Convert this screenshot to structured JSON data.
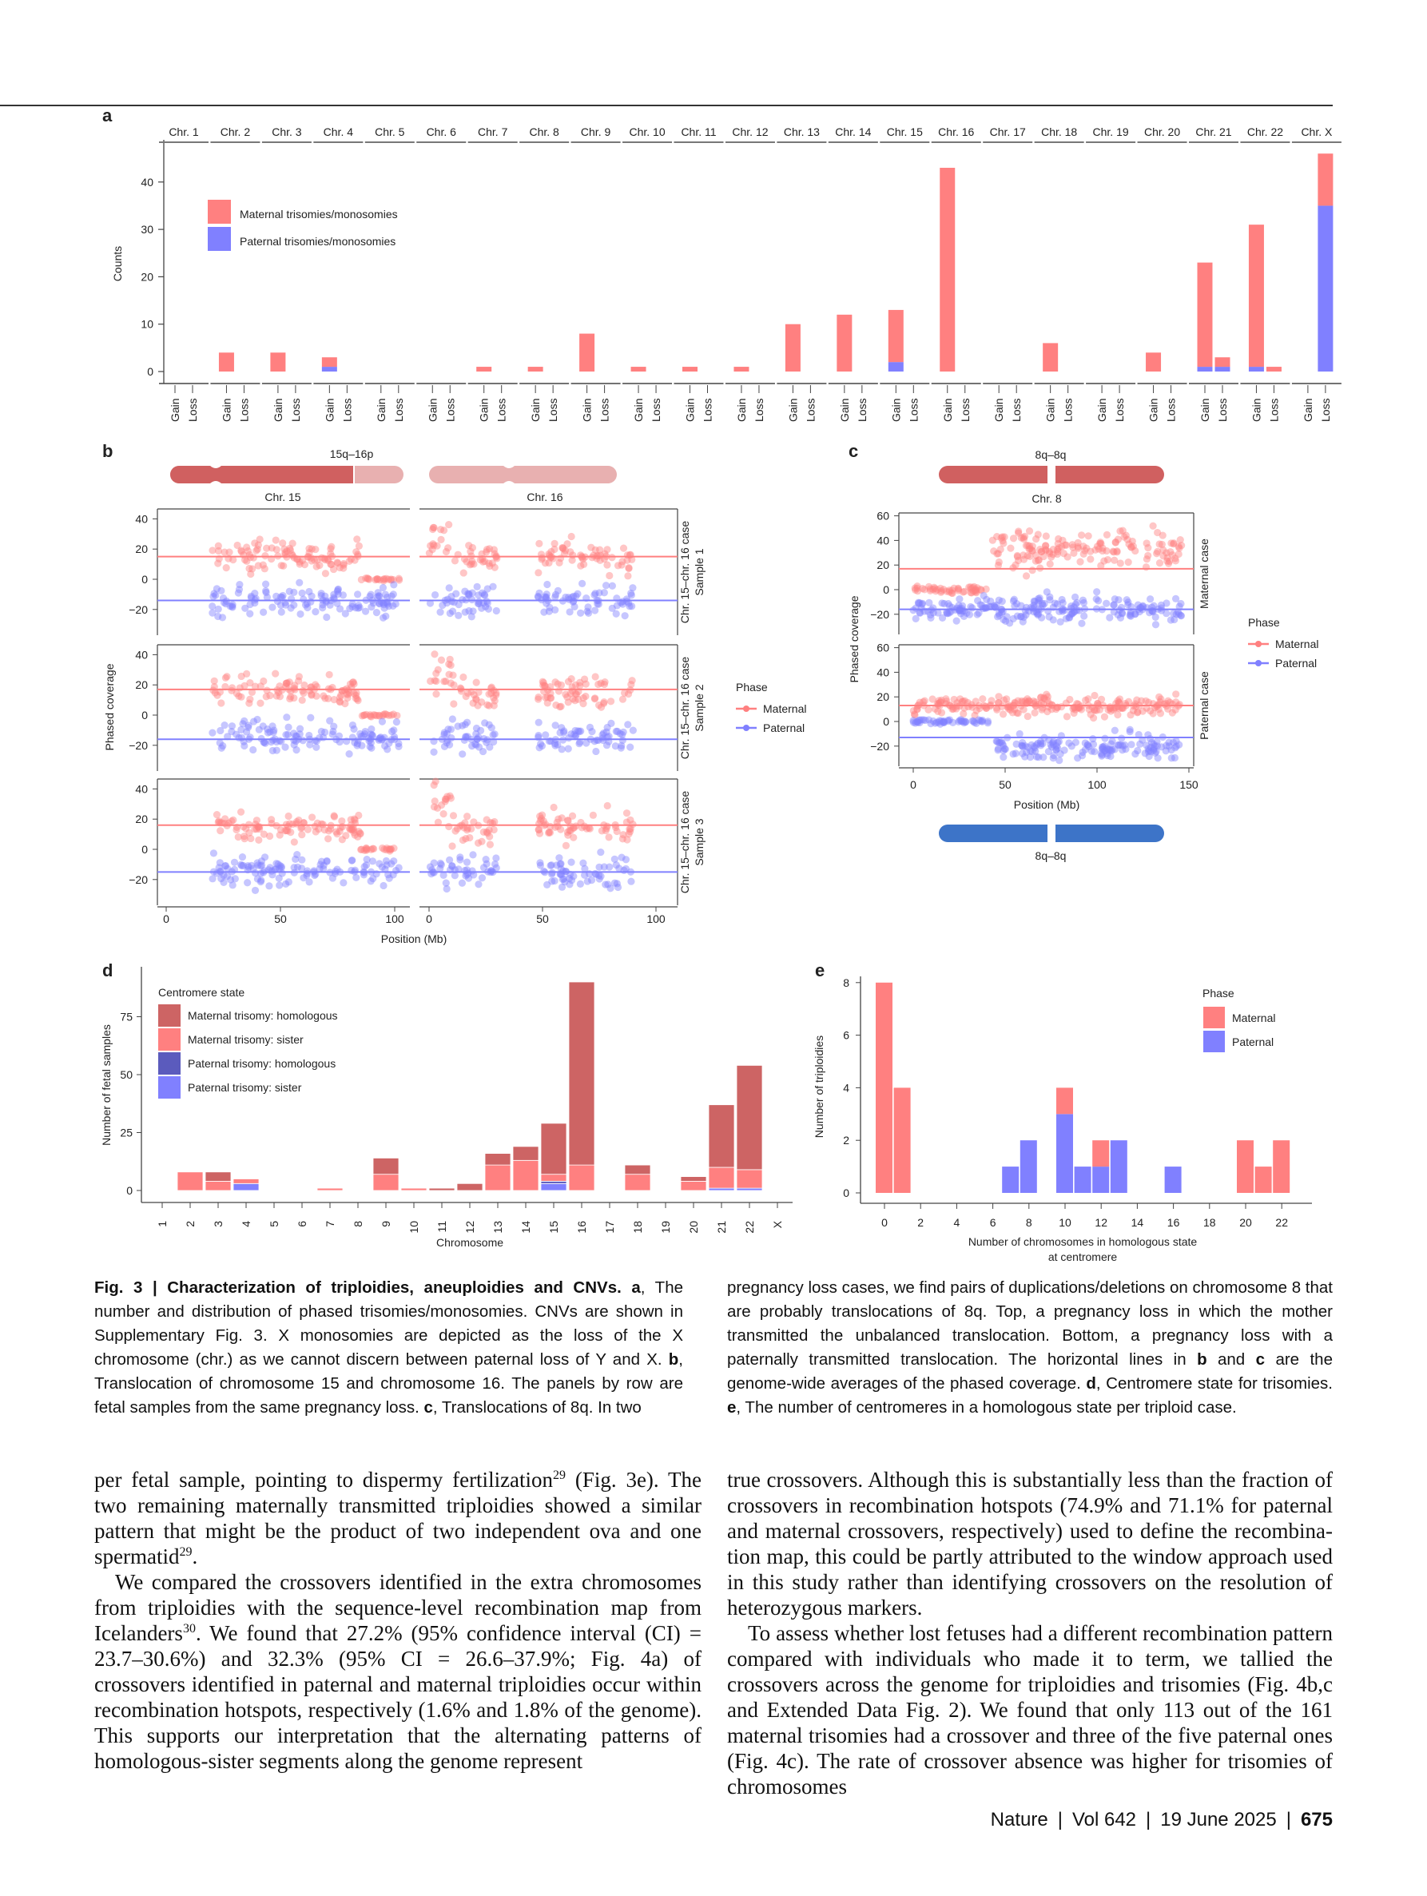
{
  "colors": {
    "maternal": "#ff8080",
    "paternal": "#8080ff",
    "maternal_homologous": "#cd6464",
    "paternal_homologous": "#5b5bbd",
    "ideogram_dark": "#d06060",
    "ideogram_light": "#e8b0b0",
    "ideogram_blue": "#3d74c8"
  },
  "panel_letters": {
    "a": "a",
    "b": "b",
    "c": "c",
    "d": "d",
    "e": "e"
  },
  "chart_data": [
    {
      "id": "a",
      "type": "bar",
      "stacked": true,
      "ylabel": "Counts",
      "yticks": [
        0,
        10,
        20,
        30,
        40
      ],
      "ylim": [
        0,
        46
      ],
      "legend": [
        "Maternal trisomies/monosomies",
        "Paternal trisomies/monosomies"
      ],
      "legend_placement": "top-left",
      "subcategories": [
        "Gain",
        "Loss"
      ],
      "categories": [
        "Chr. 1",
        "Chr. 2",
        "Chr. 3",
        "Chr. 4",
        "Chr. 5",
        "Chr. 6",
        "Chr. 7",
        "Chr. 8",
        "Chr. 9",
        "Chr. 10",
        "Chr. 11",
        "Chr. 12",
        "Chr. 13",
        "Chr. 14",
        "Chr. 15",
        "Chr. 16",
        "Chr. 17",
        "Chr. 18",
        "Chr. 19",
        "Chr. 20",
        "Chr. 21",
        "Chr. 22",
        "Chr. X"
      ],
      "series": [
        {
          "name": "Maternal trisomies/monosomies",
          "gain": [
            0,
            4,
            4,
            2,
            0,
            0,
            1,
            1,
            8,
            1,
            1,
            1,
            10,
            12,
            11,
            43,
            0,
            6,
            0,
            4,
            22,
            30,
            0
          ],
          "loss": [
            0,
            0,
            0,
            0,
            0,
            0,
            0,
            0,
            0,
            0,
            0,
            0,
            0,
            0,
            0,
            0,
            0,
            0,
            0,
            0,
            2,
            1,
            11
          ]
        },
        {
          "name": "Paternal trisomies/monosomies",
          "gain": [
            0,
            0,
            0,
            1,
            0,
            0,
            0,
            0,
            0,
            0,
            0,
            0,
            0,
            0,
            2,
            0,
            0,
            0,
            0,
            0,
            1,
            1,
            0
          ],
          "loss": [
            0,
            0,
            0,
            0,
            0,
            0,
            0,
            0,
            0,
            0,
            0,
            0,
            0,
            0,
            0,
            0,
            0,
            0,
            0,
            0,
            1,
            0,
            35
          ]
        }
      ]
    },
    {
      "id": "b",
      "type": "scatter",
      "ideogram_label": "15q–16p",
      "panels": [
        "Chr. 15",
        "Chr. 16"
      ],
      "ylabel": "Phased coverage",
      "xlabel": "Position (Mb)",
      "yticks": [
        -20,
        0,
        20,
        40
      ],
      "xticks": [
        0,
        50,
        100
      ],
      "legend_title": "Phase",
      "legend": [
        "Maternal",
        "Paternal"
      ],
      "legend_placement": "right",
      "rows": [
        {
          "strip": [
            "Chr. 15–chr. 16 case",
            "Sample 1"
          ],
          "avg": {
            "maternal": 15,
            "paternal": -14
          }
        },
        {
          "strip": [
            "Chr. 15–chr. 16 case",
            "Sample 2"
          ],
          "avg": {
            "maternal": 17,
            "paternal": -16
          }
        },
        {
          "strip": [
            "Chr. 15–chr. 16 case",
            "Sample 3"
          ],
          "avg": {
            "maternal": 16,
            "paternal": -15
          }
        }
      ],
      "clusters": {
        "Chr. 15": [
          {
            "phase": "maternal",
            "from": 20,
            "to": 85,
            "mean": 15,
            "sd": 5
          },
          {
            "phase": "maternal",
            "from": 85,
            "to": 102,
            "mean": 0,
            "sd": 0.5
          },
          {
            "phase": "paternal",
            "from": 20,
            "to": 102,
            "mean": -14,
            "sd": 5
          }
        ],
        "Chr. 16": [
          {
            "phase": "maternal",
            "from": 0,
            "to": 10,
            "mean": 28,
            "sd": 7
          },
          {
            "phase": "maternal",
            "from": 10,
            "to": 30,
            "mean": 14,
            "sd": 5
          },
          {
            "phase": "maternal",
            "from": 48,
            "to": 90,
            "mean": 15,
            "sd": 5
          },
          {
            "phase": "paternal",
            "from": 0,
            "to": 30,
            "mean": -14,
            "sd": 5
          },
          {
            "phase": "paternal",
            "from": 48,
            "to": 90,
            "mean": -14,
            "sd": 5
          }
        ]
      }
    },
    {
      "id": "c",
      "type": "scatter",
      "ideogram_label_top": "8q–8q",
      "ideogram_label_bottom": "8q–8q",
      "panel": "Chr. 8",
      "ylabel": "Phased coverage",
      "xlabel": "Position (Mb)",
      "yticks": [
        -20,
        0,
        20,
        40,
        60
      ],
      "xticks": [
        0,
        50,
        100,
        150
      ],
      "legend_title": "Phase",
      "legend": [
        "Maternal",
        "Paternal"
      ],
      "legend_placement": "right",
      "rows": [
        {
          "strip": "Maternal case",
          "avg": {
            "maternal": 17,
            "paternal": -16
          },
          "clusters": [
            {
              "phase": "maternal",
              "from": 0,
              "to": 40,
              "mean": 0,
              "sd": 1.5
            },
            {
              "phase": "maternal",
              "from": 42,
              "to": 146,
              "mean": 32,
              "sd": 8
            },
            {
              "phase": "paternal",
              "from": 0,
              "to": 146,
              "mean": -16,
              "sd": 5
            }
          ]
        },
        {
          "strip": "Paternal case",
          "avg": {
            "maternal": 13,
            "paternal": -13
          },
          "clusters": [
            {
              "phase": "maternal",
              "from": 0,
              "to": 146,
              "mean": 13,
              "sd": 4
            },
            {
              "phase": "paternal",
              "from": 0,
              "to": 42,
              "mean": 0,
              "sd": 0.8
            },
            {
              "phase": "paternal",
              "from": 45,
              "to": 146,
              "mean": -21,
              "sd": 5
            }
          ]
        }
      ]
    },
    {
      "id": "d",
      "type": "bar",
      "stacked": true,
      "xlabel": "Chromosome",
      "ylabel": "Number of fetal samples",
      "yticks": [
        0,
        25,
        50,
        75
      ],
      "ylim": [
        0,
        92
      ],
      "legend_title": "Centromere state",
      "legend_placement": "top-left",
      "categories": [
        "1",
        "2",
        "3",
        "4",
        "5",
        "6",
        "7",
        "8",
        "9",
        "10",
        "11",
        "12",
        "13",
        "14",
        "15",
        "16",
        "17",
        "18",
        "19",
        "20",
        "21",
        "22",
        "X"
      ],
      "series": [
        {
          "name": "Paternal trisomy: sister",
          "values": [
            0,
            0,
            0,
            3,
            0,
            0,
            0,
            0,
            0,
            0,
            0,
            0,
            0,
            0,
            3,
            0,
            0,
            0,
            0,
            0,
            1,
            1,
            0
          ]
        },
        {
          "name": "Paternal trisomy: homologous",
          "values": [
            0,
            0,
            0,
            0,
            0,
            0,
            0,
            0,
            0,
            0,
            0,
            0,
            0,
            0,
            1,
            0,
            0,
            0,
            0,
            0,
            0,
            0,
            0
          ]
        },
        {
          "name": "Maternal trisomy: sister",
          "values": [
            0,
            8,
            4,
            2,
            0,
            0,
            1,
            0,
            7,
            1,
            0,
            0,
            11,
            13,
            3,
            11,
            0,
            7,
            0,
            4,
            9,
            8,
            0
          ]
        },
        {
          "name": "Maternal trisomy: homologous",
          "values": [
            0,
            0,
            4,
            0,
            0,
            0,
            0,
            0,
            7,
            0,
            1,
            3,
            5,
            6,
            22,
            79,
            0,
            4,
            0,
            2,
            27,
            45,
            0
          ]
        }
      ],
      "legend_order": [
        "Maternal trisomy: homologous",
        "Maternal trisomy: sister",
        "Paternal trisomy: homologous",
        "Paternal trisomy: sister"
      ]
    },
    {
      "id": "e",
      "type": "bar",
      "stacked": true,
      "xlabel": [
        "Number of chromosomes in homologous state",
        "at centromere"
      ],
      "ylabel": "Number of triploidies",
      "yticks": [
        0,
        2,
        4,
        6,
        8
      ],
      "xticks": [
        0,
        2,
        4,
        6,
        8,
        10,
        12,
        14,
        16,
        18,
        20,
        22
      ],
      "ylim": [
        0,
        8.5
      ],
      "legend_title": "Phase",
      "legend": [
        "Maternal",
        "Paternal"
      ],
      "legend_placement": "top-right",
      "x": [
        0,
        1,
        7,
        8,
        10,
        11,
        12,
        13,
        16,
        20,
        21,
        22
      ],
      "series": [
        {
          "name": "Paternal",
          "values": [
            0,
            0,
            1,
            2,
            3,
            1,
            1,
            2,
            1,
            0,
            0,
            0
          ]
        },
        {
          "name": "Maternal",
          "values": [
            8,
            4,
            0,
            0,
            1,
            0,
            1,
            0,
            0,
            2,
            1,
            2
          ]
        }
      ]
    }
  ],
  "caption": {
    "left": [
      {
        "t": "Fig. 3 | Characterization of triploidies, aneuploidies and CNVs. ",
        "b": true
      },
      {
        "t": "a",
        "b": true
      },
      {
        "t": ", The number and distribution of phased trisomies/monosomies. CNVs are shown in Supplementary Fig. 3. X monosomies are depicted as the loss of the X chromosome (chr.) as we cannot discern between paternal loss of Y and X. "
      },
      {
        "t": "b",
        "b": true
      },
      {
        "t": ", Translocation of chromosome 15 and chromosome 16. The panels by row are fetal samples from the same pregnancy loss. "
      },
      {
        "t": "c",
        "b": true
      },
      {
        "t": ", Translocations of 8q. In two"
      }
    ],
    "right": [
      {
        "t": "pregnancy loss cases, we find pairs of duplications/deletions on chromosome 8 that are probably translocations of 8q. Top, a pregnancy loss in which the mother transmitted the unbalanced translocation. Bottom, a pregnancy loss with a paternally transmitted translocation. The horizontal lines in "
      },
      {
        "t": "b",
        "b": true
      },
      {
        "t": " and "
      },
      {
        "t": "c",
        "b": true
      },
      {
        "t": " are the genome-wide averages of the phased coverage. "
      },
      {
        "t": "d",
        "b": true
      },
      {
        "t": ", Centromere state for trisomies. "
      },
      {
        "t": "e",
        "b": true
      },
      {
        "t": ", The number of centromeres in a homologous state per triploid case."
      }
    ]
  },
  "body": {
    "left": [
      {
        "indent": false,
        "parts": [
          {
            "t": "per fetal sample, pointing to dispermy fertilization"
          },
          {
            "t": "29",
            "sup": true
          },
          {
            "t": " (Fig. 3e). The two remaining maternally transmitted triploidies showed a similar pattern that might be the product of two independent ova and one spermatid"
          },
          {
            "t": "29",
            "sup": true
          },
          {
            "t": "."
          }
        ]
      },
      {
        "indent": true,
        "parts": [
          {
            "t": "We compared the crossovers identified in the extra chromo­somes from triploidies with the sequence-level recombination map from Icelanders"
          },
          {
            "t": "30",
            "sup": true
          },
          {
            "t": ". We found that 27.2% (95% confidence interval (CI) = 23.7–30.6%) and 32.3% (95% CI = 26.6–37.9%; Fig. 4a) of crossovers identified in paternal and maternal triploidies occur within recombination hotspots, respectively (1.6% and 1.8% of the genome). This supports our interpretation that the alternating patterns of homologous-sister segments along the genome represent"
          }
        ]
      }
    ],
    "right": [
      {
        "indent": false,
        "parts": [
          {
            "t": "true crossovers. Although this is substantially less than the fraction of crossovers in recombination hotspots (74.9% and 71.1% for paternal and maternal crossovers, respectively) used to define the recombina­tion map, this could be partly attributed to the window approach used in this study rather than identifying crossovers on the resolution of heterozygous markers."
          }
        ]
      },
      {
        "indent": true,
        "parts": [
          {
            "t": "To assess whether lost fetuses had a different recombination pat­tern compared with individuals who made it to term, we tallied the crossovers across the genome for triploidies and trisomies (Fig. 4b,c and Extended Data Fig. 2). We found that only 113 out of the 161 maternal trisomies had a crossover and three of the five paternal ones (Fig. 4c). The rate of crossover absence was higher for trisomies of chromosomes"
          }
        ]
      }
    ]
  },
  "footer": {
    "journal": "Nature",
    "volume": "Vol 642",
    "date": "19 June 2025",
    "page": "675"
  }
}
